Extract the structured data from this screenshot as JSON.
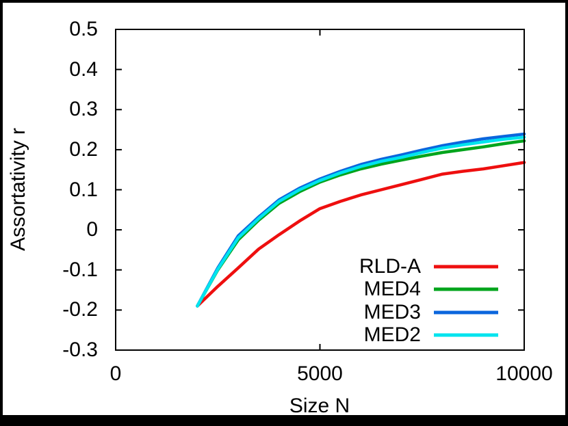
{
  "figure": {
    "background_color": "#ffffff",
    "frame_color": "#000000",
    "legend_position": "inside-lower-right"
  },
  "chart_data": {
    "type": "line",
    "title": "",
    "xlabel": "Size N",
    "ylabel": "Assortativity r",
    "xlim": [
      0,
      10000
    ],
    "ylim": [
      -0.3,
      0.5
    ],
    "grid": false,
    "xticks": [
      0,
      5000,
      10000
    ],
    "xtick_labels": [
      "0",
      "5000",
      "10000"
    ],
    "yticks": [
      0.5,
      0.4,
      0.3,
      0.2,
      0.1,
      0,
      -0.1,
      -0.2,
      -0.3
    ],
    "ytick_labels": [
      "0.5",
      "0.4",
      "0.3",
      "0.2",
      "0.1",
      "0",
      "-0.1",
      "-0.2",
      "-0.3"
    ],
    "legend_position": "inside lower right",
    "x": [
      2000,
      2500,
      3000,
      3500,
      4000,
      4500,
      5000,
      5500,
      6000,
      6500,
      7000,
      7500,
      8000,
      8500,
      9000,
      9500,
      10000
    ],
    "series": [
      {
        "name": "RLD-A",
        "color": "#ee0f0f",
        "values": [
          -0.19,
          -0.141,
          -0.095,
          -0.048,
          -0.012,
          0.022,
          0.053,
          0.071,
          0.087,
          0.1,
          0.113,
          0.126,
          0.139,
          0.146,
          0.152,
          0.16,
          0.168
        ]
      },
      {
        "name": "MED4",
        "color": "#00a41c",
        "values": [
          -0.19,
          -0.1,
          -0.025,
          0.024,
          0.066,
          0.095,
          0.119,
          0.137,
          0.152,
          0.164,
          0.174,
          0.184,
          0.193,
          0.2,
          0.207,
          0.215,
          0.222
        ]
      },
      {
        "name": "MED3",
        "color": "#0b66dd",
        "values": [
          -0.19,
          -0.095,
          -0.015,
          0.032,
          0.075,
          0.104,
          0.127,
          0.146,
          0.163,
          0.176,
          0.187,
          0.199,
          0.21,
          0.219,
          0.227,
          0.233,
          0.239
        ]
      },
      {
        "name": "MED2",
        "color": "#00e4ee",
        "values": [
          -0.19,
          -0.098,
          -0.02,
          0.028,
          0.071,
          0.1,
          0.123,
          0.142,
          0.158,
          0.171,
          0.181,
          0.193,
          0.204,
          0.212,
          0.219,
          0.226,
          0.231
        ]
      }
    ]
  }
}
